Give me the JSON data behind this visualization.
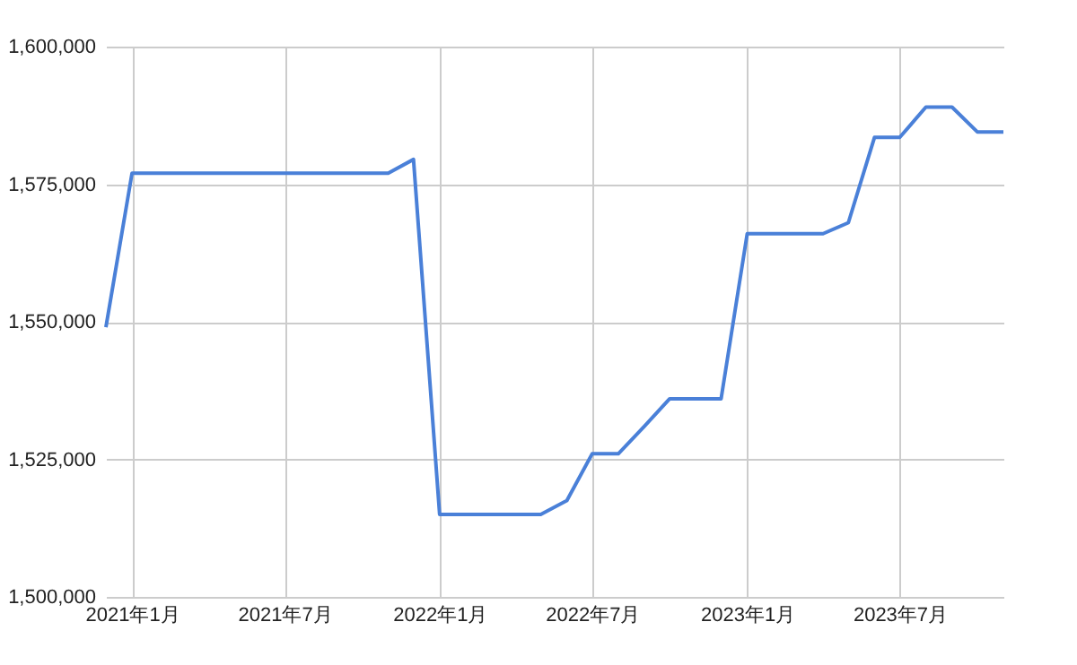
{
  "chart_data": {
    "type": "line",
    "x": [
      "2020-12",
      "2021-01",
      "2021-02",
      "2021-03",
      "2021-04",
      "2021-05",
      "2021-06",
      "2021-07",
      "2021-08",
      "2021-09",
      "2021-10",
      "2021-11",
      "2021-12",
      "2022-01",
      "2022-02",
      "2022-03",
      "2022-04",
      "2022-05",
      "2022-06",
      "2022-07",
      "2022-08",
      "2022-09",
      "2022-10",
      "2022-11",
      "2022-12",
      "2023-01",
      "2023-02",
      "2023-03",
      "2023-04",
      "2023-05",
      "2023-06",
      "2023-07",
      "2023-08",
      "2023-09",
      "2023-10",
      "2023-11"
    ],
    "series": [
      {
        "color": "#4a80d8",
        "values": [
          1549000,
          1577000,
          1577000,
          1577000,
          1577000,
          1577000,
          1577000,
          1577000,
          1577000,
          1577000,
          1577000,
          1577000,
          1579500,
          1515000,
          1515000,
          1515000,
          1515000,
          1515000,
          1517500,
          1526000,
          1526000,
          1531000,
          1536000,
          1536000,
          1536000,
          1566000,
          1566000,
          1566000,
          1566000,
          1568000,
          1583500,
          1583500,
          1589000,
          1589000,
          1584500,
          1584500
        ]
      }
    ],
    "xlim": [
      "2020-12",
      "2023-11"
    ],
    "xticks": [
      {
        "value": "2021-01",
        "label": "2021年1月"
      },
      {
        "value": "2021-07",
        "label": "2021年7月"
      },
      {
        "value": "2022-01",
        "label": "2022年1月"
      },
      {
        "value": "2022-07",
        "label": "2022年7月"
      },
      {
        "value": "2023-01",
        "label": "2023年1月"
      },
      {
        "value": "2023-07",
        "label": "2023年7月"
      }
    ],
    "ylim": [
      1500000,
      1600000
    ],
    "yticks": [
      {
        "value": 1500000,
        "label": "1,500,000"
      },
      {
        "value": 1525000,
        "label": "1,525,000"
      },
      {
        "value": 1550000,
        "label": "1,550,000"
      },
      {
        "value": 1575000,
        "label": "1,575,000"
      },
      {
        "value": 1600000,
        "label": "1,600,000"
      }
    ],
    "grid": true,
    "marker": "none",
    "line_style": "solid"
  }
}
